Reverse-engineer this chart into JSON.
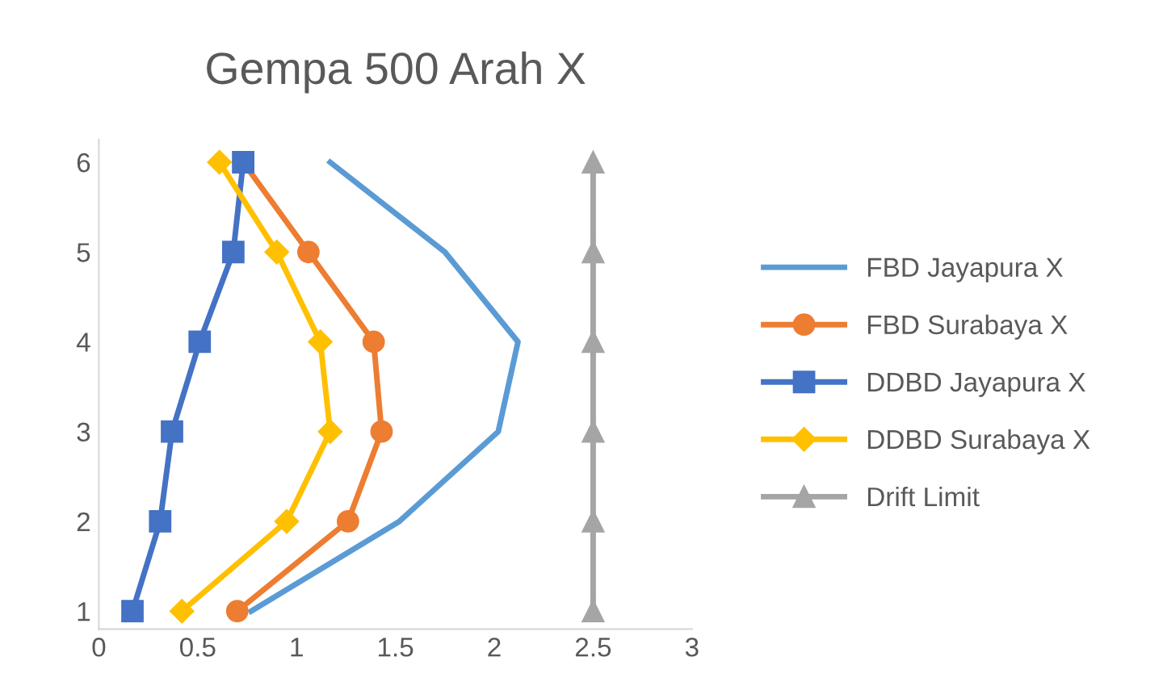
{
  "chart_data": {
    "type": "line",
    "title": "Gempa 500 Arah X",
    "xlim": [
      0,
      3
    ],
    "xticks": [
      0,
      0.5,
      1,
      1.5,
      2,
      2.5,
      3
    ],
    "ylim": [
      0.8,
      6.25
    ],
    "yticks": [
      1,
      2,
      3,
      4,
      5,
      6
    ],
    "grid": false,
    "legend": "right",
    "series": [
      {
        "name": "FBD Jayapura X",
        "color": "#5b9bd5",
        "marker": "none",
        "x": [
          0.77,
          1.52,
          2.02,
          2.12,
          1.75,
          1.17
        ],
        "values": [
          1,
          2,
          3,
          4,
          5,
          6
        ]
      },
      {
        "name": "FBD Surabaya X",
        "color": "#ed7d31",
        "marker": "circle",
        "x": [
          0.7,
          1.26,
          1.43,
          1.39,
          1.06,
          0.73
        ],
        "values": [
          1,
          2,
          3,
          4,
          5,
          6
        ]
      },
      {
        "name": "DDBD Jayapura X",
        "color": "#4472c4",
        "marker": "square",
        "x": [
          0.17,
          0.31,
          0.37,
          0.51,
          0.68,
          0.73
        ],
        "values": [
          1,
          2,
          3,
          4,
          5,
          6
        ]
      },
      {
        "name": "DDBD Surabaya X",
        "color": "#ffc000",
        "marker": "diamond",
        "x": [
          0.42,
          0.95,
          1.17,
          1.12,
          0.9,
          0.61
        ],
        "values": [
          1,
          2,
          3,
          4,
          5,
          6
        ]
      },
      {
        "name": "Drift Limit",
        "color": "#a5a5a5",
        "marker": "triangle",
        "x": [
          2.5,
          2.5,
          2.5,
          2.5,
          2.5,
          2.5
        ],
        "values": [
          1,
          2,
          3,
          4,
          5,
          6
        ]
      }
    ]
  }
}
